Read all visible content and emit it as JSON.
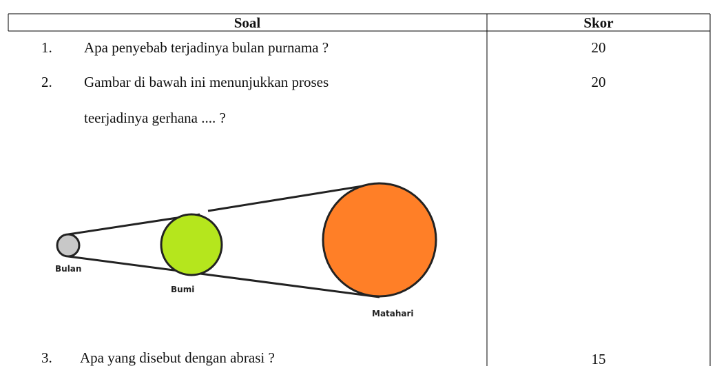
{
  "table": {
    "header": [
      "Soal",
      "Skor"
    ],
    "rows": [
      {
        "number": "1.",
        "question": [
          "Apa penyebab terjadinya bulan purnama ?"
        ],
        "score": 20
      },
      {
        "number": "2.",
        "question": [
          "Gambar di bawah ini menunjukkan proses",
          "teerjadinya gerhana ....  ?"
        ],
        "score": 20
      },
      {
        "number": "3.",
        "question": [
          "Apa yang disebut dengan abrasi ?"
        ],
        "score": 15
      }
    ]
  },
  "diagram": {
    "labels": [
      "Bulan",
      "Bumi",
      "Matahari"
    ]
  }
}
